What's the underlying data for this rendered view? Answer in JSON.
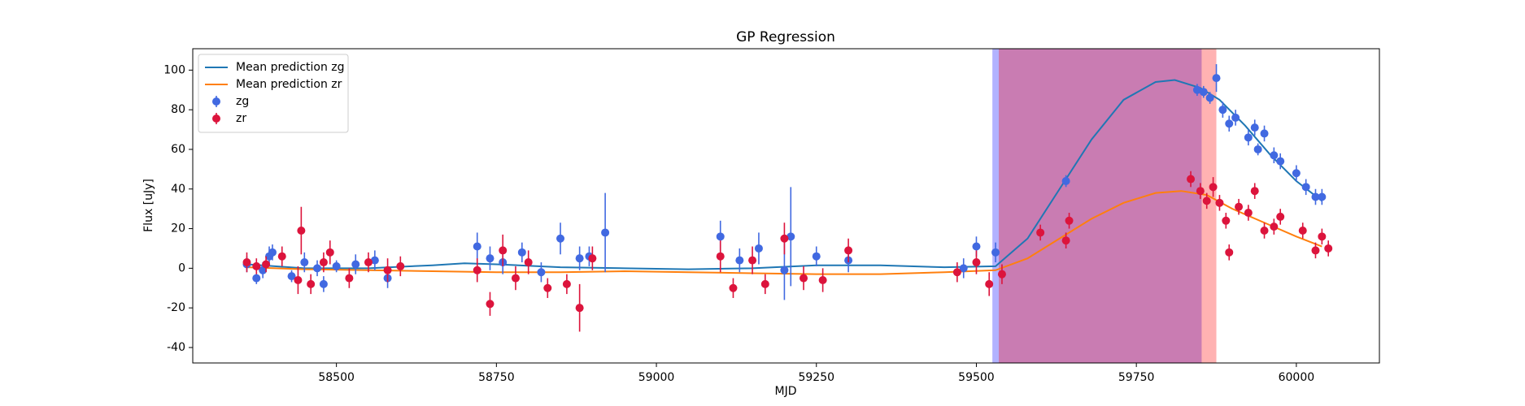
{
  "chart_data": {
    "type": "scatter",
    "title": "GP Regression",
    "x_label": "MJD",
    "y_label": "Flux [uJy]",
    "xlim": [
      58275.5,
      60129.8
    ],
    "ylim": [
      -47.8,
      110.8
    ],
    "xticks": [
      58500,
      58750,
      59000,
      59250,
      59500,
      59750,
      60000
    ],
    "yticks": [
      -40,
      -20,
      0,
      20,
      40,
      60,
      80,
      100
    ],
    "legend": "upper left",
    "spans": [
      {
        "x": [
          59525,
          59852
        ],
        "color": "#0000ff"
      },
      {
        "x": [
          59535,
          59875
        ],
        "color": "#ff0000"
      }
    ],
    "lines": [
      {
        "name": "Mean prediction zg",
        "color": "#1f77b4",
        "x": [
          58360,
          58450,
          58550,
          58650,
          58700,
          58750,
          58850,
          58950,
          59050,
          59150,
          59250,
          59350,
          59450,
          59530,
          59580,
          59630,
          59680,
          59730,
          59780,
          59810,
          59850,
          59880,
          59920,
          59960,
          60000,
          60040
        ],
        "values": [
          2,
          0,
          0,
          1.5,
          2.5,
          2,
          0.5,
          0,
          -0.5,
          0,
          1.5,
          1.5,
          0.5,
          1,
          15,
          40,
          65,
          85,
          94,
          95,
          91,
          85,
          72,
          57,
          44,
          34
        ]
      },
      {
        "name": "Mean prediction zr",
        "color": "#ff7f0e",
        "x": [
          58360,
          58450,
          58550,
          58650,
          58750,
          58850,
          58950,
          59050,
          59150,
          59250,
          59350,
          59450,
          59530,
          59580,
          59630,
          59680,
          59730,
          59780,
          59820,
          59860,
          59900,
          59950,
          60000,
          60040
        ],
        "values": [
          0.5,
          -0.5,
          -1,
          -1.5,
          -2,
          -2,
          -1.5,
          -2,
          -2.5,
          -3,
          -3,
          -2,
          -1,
          5,
          15,
          25,
          33,
          38,
          39,
          37,
          30,
          23,
          16,
          11
        ]
      }
    ],
    "series": [
      {
        "name": "zg",
        "color": "#4169e1",
        "x": [
          58360,
          58375,
          58385,
          58395,
          58400,
          58430,
          58450,
          58470,
          58480,
          58500,
          58530,
          58560,
          58580,
          58720,
          58740,
          58760,
          58790,
          58820,
          58850,
          58880,
          58895,
          58920,
          59100,
          59130,
          59160,
          59200,
          59210,
          59250,
          59300,
          59480,
          59500,
          59530,
          59640,
          59845,
          59855,
          59865,
          59875,
          59885,
          59895,
          59905,
          59925,
          59935,
          59940,
          59950,
          59965,
          59975,
          60000,
          60015,
          60030,
          60040
        ],
        "values": [
          2,
          -5,
          -1,
          6,
          8,
          -4,
          3,
          0,
          -8,
          1,
          2,
          4,
          -5,
          11,
          5,
          3,
          8,
          -2,
          15,
          5,
          6,
          18,
          16,
          4,
          10,
          -1,
          16,
          6,
          4,
          0,
          11,
          8,
          44,
          90,
          89,
          86,
          96,
          80,
          73,
          76,
          66,
          71,
          60,
          68,
          57,
          54,
          48,
          41,
          36,
          36
        ],
        "errors": [
          4,
          3,
          4,
          5,
          4,
          3,
          5,
          4,
          4,
          3,
          5,
          5,
          5,
          7,
          6,
          6,
          5,
          5,
          8,
          6,
          5,
          20,
          8,
          6,
          8,
          15,
          25,
          5,
          6,
          5,
          5,
          5,
          3,
          3,
          3,
          3,
          7,
          4,
          4,
          4,
          4,
          4,
          3,
          4,
          4,
          4,
          4,
          4,
          4,
          4
        ]
      },
      {
        "name": "zr",
        "color": "#dc143c",
        "x": [
          58360,
          58375,
          58390,
          58415,
          58440,
          58445,
          58460,
          58480,
          58490,
          58520,
          58550,
          58580,
          58600,
          58720,
          58740,
          58760,
          58780,
          58800,
          58830,
          58860,
          58880,
          58900,
          59100,
          59120,
          59150,
          59170,
          59200,
          59230,
          59260,
          59300,
          59470,
          59500,
          59520,
          59540,
          59600,
          59640,
          59645,
          59835,
          59850,
          59860,
          59870,
          59880,
          59890,
          59895,
          59910,
          59925,
          59935,
          59950,
          59965,
          59975,
          60010,
          60030,
          60040,
          60050
        ],
        "values": [
          3,
          1,
          2,
          6,
          -6,
          19,
          -8,
          3,
          8,
          -5,
          3,
          -1,
          1,
          -1,
          -18,
          9,
          -5,
          3,
          -10,
          -8,
          -20,
          5,
          6,
          -10,
          4,
          -8,
          15,
          -5,
          -6,
          9,
          -2,
          3,
          -8,
          -3,
          18,
          14,
          24,
          45,
          39,
          34,
          41,
          33,
          24,
          8,
          31,
          28,
          39,
          19,
          21,
          26,
          19,
          9,
          16,
          10
        ],
        "errors": [
          5,
          4,
          4,
          5,
          7,
          12,
          5,
          5,
          6,
          5,
          5,
          6,
          5,
          6,
          6,
          8,
          6,
          6,
          5,
          5,
          12,
          6,
          8,
          5,
          7,
          5,
          8,
          6,
          6,
          6,
          5,
          6,
          6,
          5,
          4,
          4,
          4,
          4,
          4,
          4,
          5,
          4,
          4,
          4,
          4,
          4,
          4,
          4,
          4,
          4,
          4,
          4,
          4,
          4
        ]
      }
    ]
  }
}
